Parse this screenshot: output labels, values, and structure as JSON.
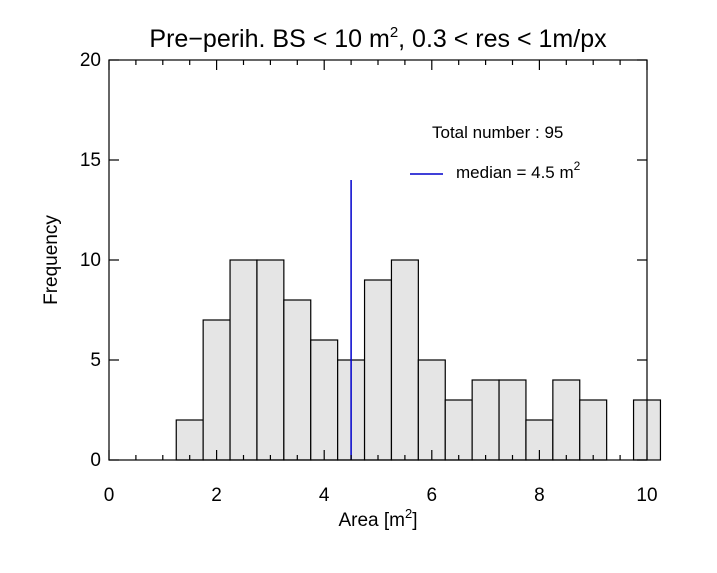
{
  "chart_data": {
    "type": "bar",
    "title": "Pre−perih. BS < 10 m",
    "title_sup": "2",
    "title_rest": ", 0.3 < res < 1m/px",
    "xlabel": "Area [m",
    "xlabel_sup": "2",
    "xlabel_end": "]",
    "ylabel": "Frequency",
    "xlim": [
      0,
      10
    ],
    "ylim": [
      0,
      20
    ],
    "xticks": [
      0,
      2,
      4,
      6,
      8,
      10
    ],
    "xtick_labels": [
      "0",
      "2",
      "4",
      "6",
      "8",
      "10"
    ],
    "yticks": [
      0,
      5,
      10,
      15,
      20
    ],
    "ytick_labels": [
      "0",
      "5",
      "10",
      "15",
      "20"
    ],
    "bin_width": 0.5,
    "bins": [
      {
        "x0": 1.25,
        "value": 2
      },
      {
        "x0": 1.75,
        "value": 7
      },
      {
        "x0": 2.25,
        "value": 10
      },
      {
        "x0": 2.75,
        "value": 10
      },
      {
        "x0": 3.25,
        "value": 8
      },
      {
        "x0": 3.75,
        "value": 6
      },
      {
        "x0": 4.25,
        "value": 5
      },
      {
        "x0": 4.75,
        "value": 9
      },
      {
        "x0": 5.25,
        "value": 10
      },
      {
        "x0": 5.75,
        "value": 5
      },
      {
        "x0": 6.25,
        "value": 3
      },
      {
        "x0": 6.75,
        "value": 4
      },
      {
        "x0": 7.25,
        "value": 4
      },
      {
        "x0": 7.75,
        "value": 2
      },
      {
        "x0": 8.25,
        "value": 4
      },
      {
        "x0": 8.75,
        "value": 3
      },
      {
        "x0": 9.75,
        "value": 3
      }
    ],
    "median": {
      "value": 4.5,
      "line_top": 14,
      "color": "#0000cc"
    },
    "annotations": {
      "total": "Total number : 95",
      "median_label": "median = 4.5 m",
      "median_sup": "2"
    }
  }
}
